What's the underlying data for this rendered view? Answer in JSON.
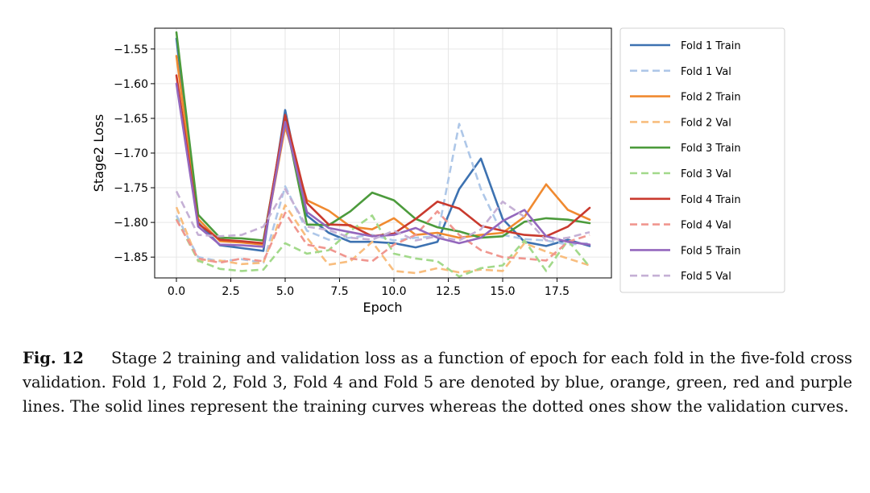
{
  "chart_data": {
    "type": "line",
    "xlabel": "Epoch",
    "ylabel": "Stage2 Loss",
    "xlim": [
      -1,
      20
    ],
    "ylim": [
      -1.88,
      -1.52
    ],
    "xticks": [
      0.0,
      2.5,
      5.0,
      7.5,
      10.0,
      12.5,
      15.0,
      17.5
    ],
    "xtick_labels": [
      "0.0",
      "2.5",
      "5.0",
      "7.5",
      "10.0",
      "12.5",
      "15.0",
      "17.5"
    ],
    "yticks": [
      -1.55,
      -1.6,
      -1.65,
      -1.7,
      -1.75,
      -1.8,
      -1.85
    ],
    "ytick_labels": [
      "−1.55",
      "−1.60",
      "−1.65",
      "−1.70",
      "−1.75",
      "−1.80",
      "−1.85"
    ],
    "grid": true,
    "legend": "outside-right",
    "x": [
      0,
      1,
      2,
      3,
      4,
      5,
      6,
      7,
      8,
      9,
      10,
      11,
      12,
      13,
      14,
      15,
      16,
      17,
      18,
      19
    ],
    "series": [
      {
        "name": "Fold 1 Train",
        "color": "#3d72b1",
        "style": "solid",
        "values": [
          -1.535,
          -1.8,
          -1.833,
          -1.837,
          -1.841,
          -1.638,
          -1.79,
          -1.815,
          -1.828,
          -1.828,
          -1.83,
          -1.836,
          -1.828,
          -1.752,
          -1.708,
          -1.795,
          -1.828,
          -1.834,
          -1.825,
          -1.834
        ]
      },
      {
        "name": "Fold 1 Val",
        "color": "#aec7e8",
        "style": "dashed",
        "values": [
          -1.79,
          -1.85,
          -1.856,
          -1.853,
          -1.858,
          -1.748,
          -1.812,
          -1.825,
          -1.822,
          -1.818,
          -1.826,
          -1.822,
          -1.82,
          -1.658,
          -1.752,
          -1.818,
          -1.824,
          -1.826,
          -1.832,
          -1.83
        ]
      },
      {
        "name": "Fold 2 Train",
        "color": "#f08a30",
        "style": "solid",
        "values": [
          -1.56,
          -1.795,
          -1.827,
          -1.829,
          -1.832,
          -1.662,
          -1.768,
          -1.783,
          -1.806,
          -1.81,
          -1.794,
          -1.818,
          -1.815,
          -1.822,
          -1.818,
          -1.815,
          -1.792,
          -1.745,
          -1.782,
          -1.796
        ]
      },
      {
        "name": "Fold 2 Val",
        "color": "#f8bd7e",
        "style": "dashed",
        "values": [
          -1.778,
          -1.856,
          -1.855,
          -1.86,
          -1.858,
          -1.775,
          -1.822,
          -1.861,
          -1.856,
          -1.828,
          -1.87,
          -1.873,
          -1.866,
          -1.872,
          -1.868,
          -1.87,
          -1.83,
          -1.842,
          -1.852,
          -1.862
        ]
      },
      {
        "name": "Fold 3 Train",
        "color": "#4c9b3c",
        "style": "solid",
        "values": [
          -1.526,
          -1.789,
          -1.822,
          -1.823,
          -1.826,
          -1.65,
          -1.803,
          -1.804,
          -1.784,
          -1.757,
          -1.768,
          -1.795,
          -1.807,
          -1.813,
          -1.822,
          -1.82,
          -1.799,
          -1.794,
          -1.796,
          -1.801
        ]
      },
      {
        "name": "Fold 3 Val",
        "color": "#a2d98a",
        "style": "dashed",
        "values": [
          -1.795,
          -1.855,
          -1.867,
          -1.87,
          -1.868,
          -1.83,
          -1.845,
          -1.84,
          -1.812,
          -1.79,
          -1.845,
          -1.852,
          -1.856,
          -1.878,
          -1.866,
          -1.862,
          -1.826,
          -1.87,
          -1.826,
          -1.864
        ]
      },
      {
        "name": "Fold 4 Train",
        "color": "#c93a2e",
        "style": "solid",
        "values": [
          -1.588,
          -1.802,
          -1.825,
          -1.827,
          -1.83,
          -1.645,
          -1.772,
          -1.803,
          -1.804,
          -1.82,
          -1.816,
          -1.795,
          -1.77,
          -1.78,
          -1.805,
          -1.812,
          -1.818,
          -1.82,
          -1.806,
          -1.779
        ]
      },
      {
        "name": "Fold 4 Val",
        "color": "#f0968f",
        "style": "dashed",
        "values": [
          -1.796,
          -1.852,
          -1.858,
          -1.852,
          -1.856,
          -1.786,
          -1.832,
          -1.838,
          -1.852,
          -1.856,
          -1.832,
          -1.818,
          -1.784,
          -1.818,
          -1.84,
          -1.85,
          -1.852,
          -1.855,
          -1.828,
          -1.818
        ]
      },
      {
        "name": "Fold 5 Train",
        "color": "#9467bd",
        "style": "solid",
        "values": [
          -1.6,
          -1.806,
          -1.832,
          -1.833,
          -1.835,
          -1.655,
          -1.785,
          -1.808,
          -1.814,
          -1.82,
          -1.818,
          -1.808,
          -1.822,
          -1.83,
          -1.822,
          -1.798,
          -1.782,
          -1.82,
          -1.828,
          -1.832
        ]
      },
      {
        "name": "Fold 5 Val",
        "color": "#c5b0d5",
        "style": "dashed",
        "values": [
          -1.755,
          -1.818,
          -1.82,
          -1.818,
          -1.806,
          -1.752,
          -1.806,
          -1.811,
          -1.822,
          -1.825,
          -1.812,
          -1.826,
          -1.82,
          -1.826,
          -1.81,
          -1.77,
          -1.792,
          -1.826,
          -1.822,
          -1.814
        ]
      }
    ]
  },
  "caption": {
    "label": "Fig. 12",
    "text": "Stage 2 training and validation loss as a function of epoch for each fold in the five-fold cross validation. Fold 1, Fold 2, Fold 3, Fold 4 and Fold 5 are denoted by blue, orange, green, red and purple lines. The solid lines represent the training curves whereas the dotted ones show the validation curves."
  }
}
